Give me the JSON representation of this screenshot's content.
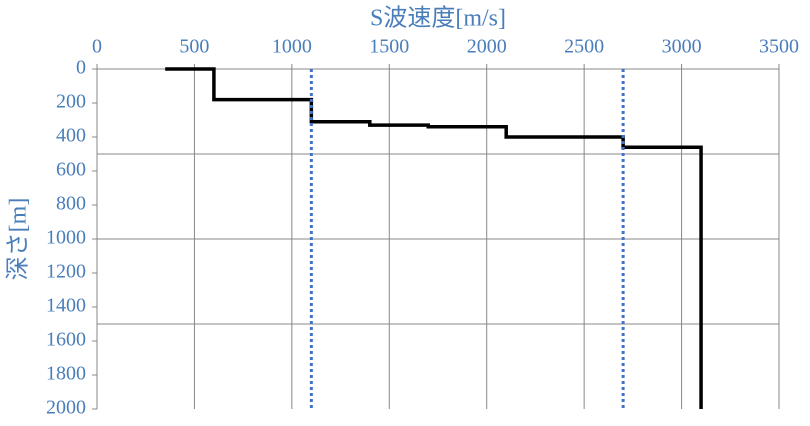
{
  "chart_data": {
    "type": "line",
    "x_label": "S波速度[m/s]",
    "y_label": "深さ[m]",
    "x_axis_position": "top",
    "y_reversed": true,
    "xlim": [
      0,
      3500
    ],
    "xticks": [
      0,
      500,
      1000,
      1500,
      2000,
      2500,
      3000,
      3500
    ],
    "ylim": [
      0,
      2000
    ],
    "yticks": [
      0,
      200,
      400,
      600,
      800,
      1000,
      1200,
      1400,
      1600,
      1800,
      2000
    ],
    "ygrid": [
      500,
      1000,
      1500
    ],
    "grid": true,
    "series": [
      {
        "color": "#000000",
        "style": "solid",
        "x": [
          350,
          600,
          600,
          1100,
          1100,
          1400,
          1400,
          1700,
          1700,
          2100,
          2100,
          2700,
          2700,
          3100,
          3100
        ],
        "values": [
          0,
          0,
          180,
          180,
          310,
          310,
          330,
          330,
          340,
          340,
          400,
          400,
          460,
          460,
          2000
        ]
      },
      {
        "color": "#4472c4",
        "style": "dotted",
        "x": [
          1100,
          1100
        ],
        "values": [
          0,
          2000
        ]
      },
      {
        "color": "#4472c4",
        "style": "dotted",
        "x": [
          2700,
          2700
        ],
        "values": [
          0,
          2000
        ]
      }
    ]
  }
}
